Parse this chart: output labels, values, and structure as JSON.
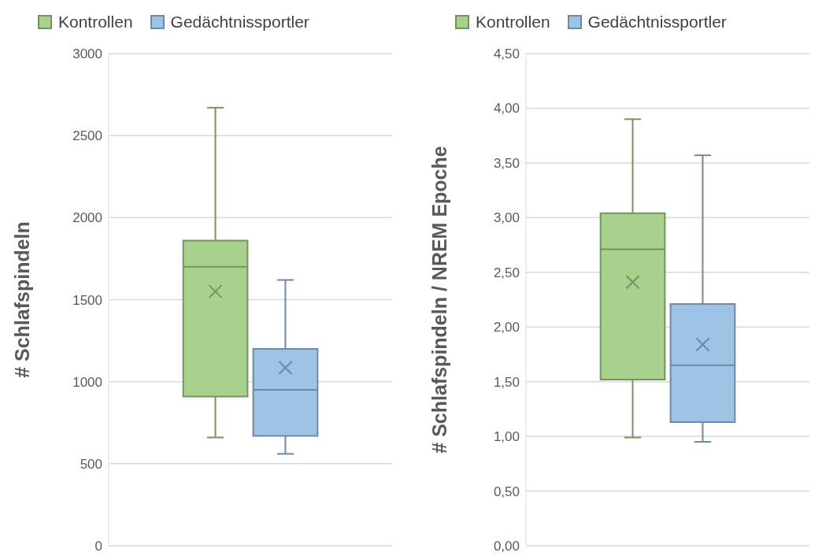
{
  "chart_data": [
    {
      "type": "box",
      "ylabel": "# Schlafspindeln",
      "categories": [
        null
      ],
      "legend": "top left",
      "grid": "y",
      "ylim": [
        0,
        3000
      ],
      "yticks": [
        0,
        500,
        1000,
        1500,
        2000,
        2500,
        3000
      ],
      "series": [
        {
          "name": "Kontrollen",
          "color": "#a9d18e",
          "boxes": [
            {
              "low": 660,
              "q1": 910,
              "median": 1700,
              "q3": 1860,
              "high": 2670,
              "mean": 1550
            }
          ]
        },
        {
          "name": "Gedächtnissportler",
          "color": "#9dc3e6",
          "boxes": [
            {
              "low": 560,
              "q1": 670,
              "median": 950,
              "q3": 1200,
              "high": 1620,
              "mean": 1085
            }
          ]
        }
      ]
    },
    {
      "type": "box",
      "ylabel": "# Schlafspindeln / NREM Epoche",
      "categories": [
        null
      ],
      "legend": "top left",
      "grid": "y",
      "ylim": [
        0,
        4.5
      ],
      "yticks": [
        {
          "value": 0,
          "label": "0,00"
        },
        {
          "value": 0.5,
          "label": "0,50"
        },
        {
          "value": 1,
          "label": "1,00"
        },
        {
          "value": 1.5,
          "label": "1,50"
        },
        {
          "value": 2,
          "label": "2,00"
        },
        {
          "value": 2.5,
          "label": "2,50"
        },
        {
          "value": 3,
          "label": "3,00"
        },
        {
          "value": 3.5,
          "label": "3,50"
        },
        {
          "value": 4,
          "label": "4,00"
        },
        {
          "value": 4.5,
          "label": "4,50"
        }
      ],
      "series": [
        {
          "name": "Kontrollen",
          "color": "#a9d18e",
          "boxes": [
            {
              "low": 0.99,
              "q1": 1.52,
              "median": 2.71,
              "q3": 3.04,
              "high": 3.9,
              "mean": 2.41
            }
          ]
        },
        {
          "name": "Gedächtnissportler",
          "color": "#9dc3e6",
          "boxes": [
            {
              "low": 0.95,
              "q1": 1.13,
              "median": 1.65,
              "q3": 2.21,
              "high": 3.57,
              "mean": 1.84
            }
          ]
        }
      ]
    }
  ]
}
